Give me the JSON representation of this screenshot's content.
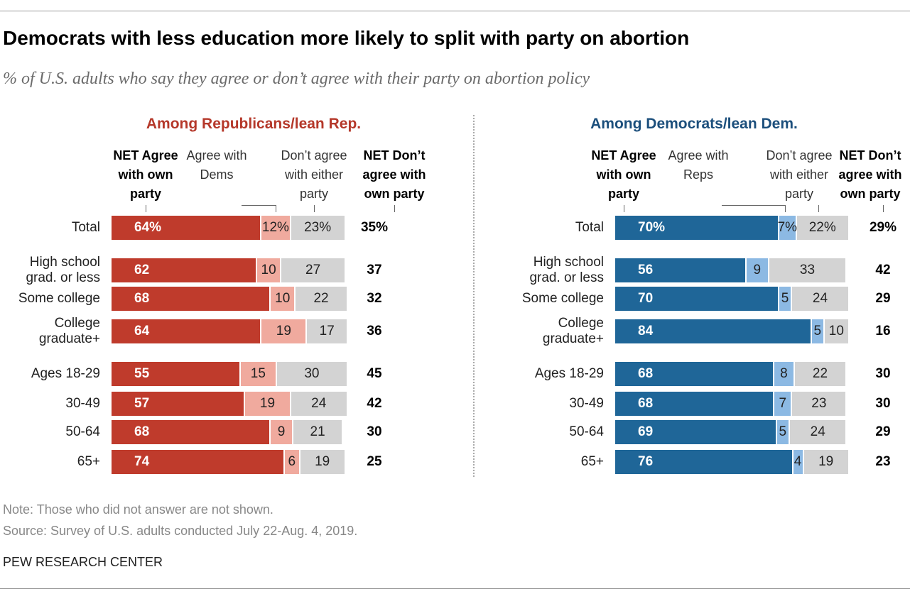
{
  "title": "Democrats with less education more likely to split with party on abortion",
  "subtitle": "% of U.S. adults who say they agree or don’t agree with their party on abortion policy",
  "note": "Note: Those who did not answer are not shown.",
  "source": "Source: Survey of U.S. adults conducted July 22-Aug. 4, 2019.",
  "brand": "PEW RESEARCH CENTER",
  "chart_data": [
    {
      "type": "stacked-bar",
      "title": "Among Republicans/lean Rep.",
      "color": "#b5382a",
      "categories": [
        "Total",
        "High school grad. or less",
        "Some college",
        "College graduate+",
        "Ages 18-29",
        "30-49",
        "50-64",
        "65+"
      ],
      "series": [
        {
          "name": "NET Agree with own party",
          "color": "#bf3b2c",
          "values": [
            64,
            62,
            68,
            64,
            55,
            57,
            68,
            74
          ],
          "value_labels": [
            "64%",
            "62",
            "68",
            "64",
            "55",
            "57",
            "68",
            "74"
          ]
        },
        {
          "name": "Agree with Dems",
          "color": "#f0aa9e",
          "values": [
            12,
            10,
            10,
            19,
            15,
            19,
            9,
            6
          ],
          "value_labels": [
            "12%",
            "10",
            "10",
            "19",
            "15",
            "19",
            "9",
            "6"
          ]
        },
        {
          "name": "Don’t agree with either party",
          "color": "#d3d3d3",
          "values": [
            23,
            27,
            22,
            17,
            30,
            24,
            21,
            19
          ],
          "value_labels": [
            "23%",
            "27",
            "22",
            "17",
            "30",
            "24",
            "21",
            "19"
          ]
        },
        {
          "name": "NET Don’t agree with own party",
          "color": "#000000",
          "values": [
            35,
            37,
            32,
            36,
            45,
            42,
            30,
            25
          ],
          "value_labels": [
            "35%",
            "37",
            "32",
            "36",
            "45",
            "42",
            "30",
            "25"
          ]
        }
      ]
    },
    {
      "type": "stacked-bar",
      "title": "Among Democrats/lean Dem.",
      "color": "#1c4f7c",
      "categories": [
        "Total",
        "High school grad. or less",
        "Some college",
        "College graduate+",
        "Ages 18-29",
        "30-49",
        "50-64",
        "65+"
      ],
      "series": [
        {
          "name": "NET Agree with own party",
          "color": "#1f6698",
          "values": [
            70,
            56,
            70,
            84,
            68,
            68,
            69,
            76
          ],
          "value_labels": [
            "70%",
            "56",
            "70",
            "84",
            "68",
            "68",
            "69",
            "76"
          ]
        },
        {
          "name": "Agree with Reps",
          "color": "#8cb9e3",
          "values": [
            7,
            9,
            5,
            5,
            8,
            7,
            5,
            4
          ],
          "value_labels": [
            "7%",
            "9",
            "5",
            "5",
            "8",
            "7",
            "5",
            "4"
          ]
        },
        {
          "name": "Don’t agree with either party",
          "color": "#d3d3d3",
          "values": [
            22,
            33,
            24,
            10,
            22,
            23,
            24,
            19
          ],
          "value_labels": [
            "22%",
            "33",
            "24",
            "10",
            "22",
            "23",
            "24",
            "19"
          ]
        },
        {
          "name": "NET Don’t agree with own party",
          "color": "#000000",
          "values": [
            29,
            42,
            29,
            16,
            30,
            30,
            29,
            23
          ],
          "value_labels": [
            "29%",
            "42",
            "29",
            "16",
            "30",
            "30",
            "29",
            "23"
          ]
        }
      ]
    }
  ]
}
